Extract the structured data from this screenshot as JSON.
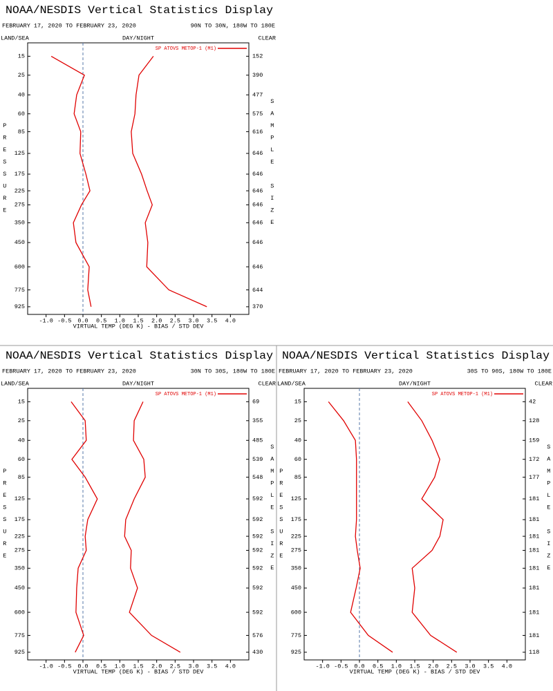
{
  "chart_data": [
    {
      "type": "line",
      "title": "NOAA/NESDIS Vertical Statistics Display",
      "subtitle": "FEBRUARY 17, 2020 TO FEBRUARY 23, 2020",
      "region": "90N TO 30N, 180W TO 180E",
      "land_sea_label": "LAND/SEA",
      "day_night_label": "DAY/NIGHT",
      "clear_label": "CLEAR",
      "xlabel": "VIRTUAL TEMP (DEG K) - BIAS / STD DEV",
      "ylabel": "PRESSURE",
      "y2label": "SAMPLE SIZE",
      "legend": "upper right",
      "yscale": "fourth-root",
      "xlim": [
        -1.5,
        4.5
      ],
      "xticks": [
        {
          "value": -1,
          "label": "-1.0"
        },
        -0.5,
        {
          "value": 0,
          "label": "0.0"
        },
        0.5,
        {
          "value": 1,
          "label": "1.0"
        },
        1.5,
        {
          "value": 2,
          "label": "2.0"
        },
        2.5,
        {
          "value": 3,
          "label": "3.0"
        },
        3.5,
        {
          "value": 4,
          "label": "4.0"
        }
      ],
      "ylim": [
        10,
        1000
      ],
      "yticks": [
        15,
        25,
        40,
        60,
        85,
        125,
        175,
        225,
        275,
        350,
        450,
        600,
        775,
        925
      ],
      "y": [
        15,
        25,
        40,
        60,
        85,
        125,
        175,
        225,
        275,
        350,
        450,
        600,
        775,
        925
      ],
      "series": [
        {
          "name": "SP ATOVS METOP-1 (M1)",
          "color": "#e00000",
          "values": [
            -0.86,
            0.04,
            -0.17,
            -0.24,
            -0.06,
            -0.08,
            0.08,
            0.19,
            -0.04,
            -0.26,
            -0.19,
            0.17,
            0.13,
            0.22
          ]
        },
        {
          "color": "#e00000",
          "values": [
            1.91,
            1.52,
            1.44,
            1.41,
            1.31,
            1.35,
            1.59,
            1.74,
            1.88,
            1.69,
            1.76,
            1.73,
            2.33,
            3.36
          ]
        }
      ],
      "sample_size": [
        152,
        390,
        477,
        575,
        616,
        646,
        646,
        646,
        646,
        646,
        646,
        646,
        644,
        370
      ]
    },
    {
      "type": "line",
      "title": "NOAA/NESDIS Vertical Statistics Display",
      "subtitle": "FEBRUARY 17, 2020 TO FEBRUARY 23, 2020",
      "region": "30N TO 30S, 180W TO 180E",
      "land_sea_label": "LAND/SEA",
      "day_night_label": "DAY/NIGHT",
      "clear_label": "CLEAR",
      "xlabel": "VIRTUAL TEMP (DEG K) - BIAS / STD DEV",
      "ylabel": "PRESSURE",
      "y2label": "SAMPLE SIZE",
      "legend": "upper right",
      "yscale": "fourth-root",
      "xlim": [
        -1.5,
        4.5
      ],
      "xticks": [
        {
          "value": -1,
          "label": "-1.0"
        },
        -0.5,
        {
          "value": 0,
          "label": "0.0"
        },
        0.5,
        {
          "value": 1,
          "label": "1.0"
        },
        1.5,
        {
          "value": 2,
          "label": "2.0"
        },
        2.5,
        {
          "value": 3,
          "label": "3.0"
        },
        3.5,
        {
          "value": 4,
          "label": "4.0"
        }
      ],
      "ylim": [
        10,
        1000
      ],
      "yticks": [
        15,
        25,
        40,
        60,
        85,
        125,
        175,
        225,
        275,
        350,
        450,
        600,
        775,
        925
      ],
      "y": [
        15,
        25,
        40,
        60,
        85,
        125,
        175,
        225,
        275,
        350,
        450,
        600,
        775,
        925
      ],
      "series": [
        {
          "name": "SP ATOVS METOP-1 (M1)",
          "color": "#e00000",
          "values": [
            -0.32,
            0.06,
            0.09,
            -0.3,
            0.06,
            0.39,
            0.13,
            0.06,
            0.09,
            -0.13,
            -0.17,
            -0.19,
            0.02,
            -0.21
          ]
        },
        {
          "color": "#e00000",
          "values": [
            1.63,
            1.39,
            1.37,
            1.65,
            1.69,
            1.39,
            1.16,
            1.13,
            1.31,
            1.29,
            1.48,
            1.26,
            1.86,
            2.64
          ]
        }
      ],
      "sample_size": [
        69,
        355,
        485,
        539,
        548,
        592,
        592,
        592,
        592,
        592,
        592,
        592,
        576,
        430
      ]
    },
    {
      "type": "line",
      "title": "NOAA/NESDIS Vertical Statistics Display",
      "subtitle": "FEBRUARY 17, 2020 TO FEBRUARY 23, 2020",
      "region": "30S TO 90S, 180W TO 180E",
      "land_sea_label": "LAND/SEA",
      "day_night_label": "DAY/NIGHT",
      "clear_label": "CLEAR",
      "xlabel": "VIRTUAL TEMP (DEG K) - BIAS / STD DEV",
      "ylabel": "PRESSURE",
      "y2label": "SAMPLE SIZE",
      "legend": "upper right",
      "yscale": "fourth-root",
      "xlim": [
        -1.5,
        4.5
      ],
      "xticks": [
        {
          "value": -1,
          "label": "-1.0"
        },
        -0.5,
        {
          "value": 0,
          "label": "0.0"
        },
        0.5,
        {
          "value": 1,
          "label": "1.0"
        },
        1.5,
        {
          "value": 2,
          "label": "2.0"
        },
        2.5,
        {
          "value": 3,
          "label": "3.0"
        },
        3.5,
        {
          "value": 4,
          "label": "4.0"
        }
      ],
      "ylim": [
        10,
        1000
      ],
      "yticks": [
        15,
        25,
        40,
        60,
        85,
        125,
        175,
        225,
        275,
        350,
        450,
        600,
        775,
        925
      ],
      "y": [
        15,
        25,
        40,
        60,
        85,
        125,
        175,
        225,
        275,
        350,
        450,
        600,
        775,
        925
      ],
      "series": [
        {
          "name": "SP ATOVS METOP-1 (M1)",
          "color": "#e00000",
          "values": [
            -0.84,
            -0.43,
            -0.11,
            -0.08,
            -0.08,
            -0.08,
            -0.08,
            -0.11,
            -0.06,
            0.02,
            -0.09,
            -0.24,
            0.24,
            0.9
          ]
        },
        {
          "color": "#e00000",
          "values": [
            1.31,
            1.69,
            1.97,
            2.18,
            2.04,
            1.69,
            2.27,
            2.18,
            1.97,
            1.43,
            1.5,
            1.43,
            1.93,
            2.64
          ]
        }
      ],
      "sample_size": [
        42,
        128,
        159,
        172,
        177,
        181,
        181,
        181,
        181,
        181,
        181,
        181,
        181,
        118
      ]
    }
  ]
}
